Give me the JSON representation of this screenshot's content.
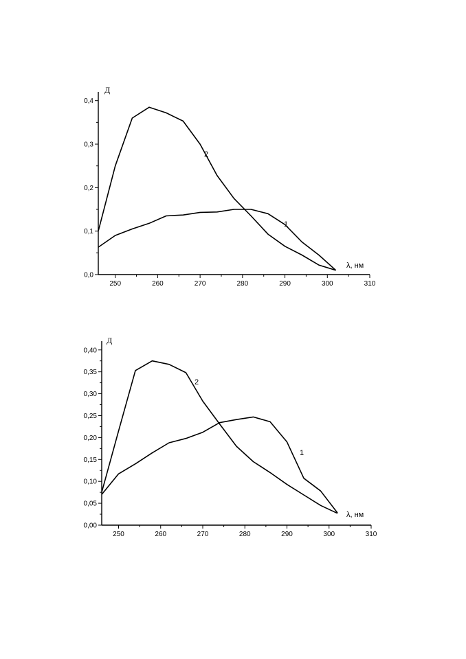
{
  "chart_data": [
    {
      "type": "line",
      "ylabel": "Д",
      "xlabel": "λ, нм",
      "xlim": [
        246,
        310
      ],
      "ylim": [
        0,
        0.42
      ],
      "xticks": [
        "250",
        "260",
        "270",
        "280",
        "290",
        "300",
        "310"
      ],
      "yticks": [
        "0,0",
        "0,1",
        "0,2",
        "0,3",
        "0,4"
      ],
      "series": [
        {
          "name": "1",
          "x": [
            246,
            250,
            254,
            258,
            262,
            266,
            270,
            274,
            278,
            282,
            286,
            290,
            294,
            298,
            302
          ],
          "y": [
            0.063,
            0.09,
            0.105,
            0.118,
            0.135,
            0.137,
            0.143,
            0.144,
            0.15,
            0.15,
            0.14,
            0.115,
            0.075,
            0.045,
            0.01
          ]
        },
        {
          "name": "2",
          "x": [
            246,
            250,
            254,
            258,
            262,
            266,
            270,
            274,
            278,
            282,
            286,
            290,
            294,
            298,
            302
          ],
          "y": [
            0.1,
            0.25,
            0.36,
            0.385,
            0.372,
            0.353,
            0.3,
            0.228,
            0.175,
            0.135,
            0.093,
            0.065,
            0.045,
            0.022,
            0.01
          ]
        }
      ]
    },
    {
      "type": "line",
      "ylabel": "Д",
      "xlabel": "λ, нм",
      "xlim": [
        246,
        310
      ],
      "ylim": [
        0,
        0.42
      ],
      "xticks": [
        "250",
        "260",
        "270",
        "280",
        "290",
        "300",
        "310"
      ],
      "yticks": [
        "0,00",
        "0,05",
        "0,10",
        "0,15",
        "0,20",
        "0,25",
        "0,30",
        "0,35",
        "0,40"
      ],
      "series": [
        {
          "name": "1",
          "x": [
            246,
            250,
            254,
            258,
            262,
            266,
            270,
            274,
            278,
            282,
            286,
            290,
            294,
            298,
            302
          ],
          "y": [
            0.07,
            0.117,
            0.14,
            0.165,
            0.188,
            0.198,
            0.212,
            0.234,
            0.241,
            0.247,
            0.236,
            0.19,
            0.107,
            0.078,
            0.028
          ]
        },
        {
          "name": "2",
          "x": [
            246,
            250,
            254,
            258,
            262,
            266,
            270,
            274,
            278,
            282,
            286,
            290,
            294,
            298,
            302
          ],
          "y": [
            0.075,
            0.215,
            0.353,
            0.375,
            0.367,
            0.348,
            0.283,
            0.231,
            0.18,
            0.145,
            0.12,
            0.093,
            0.069,
            0.045,
            0.027
          ]
        }
      ]
    }
  ]
}
